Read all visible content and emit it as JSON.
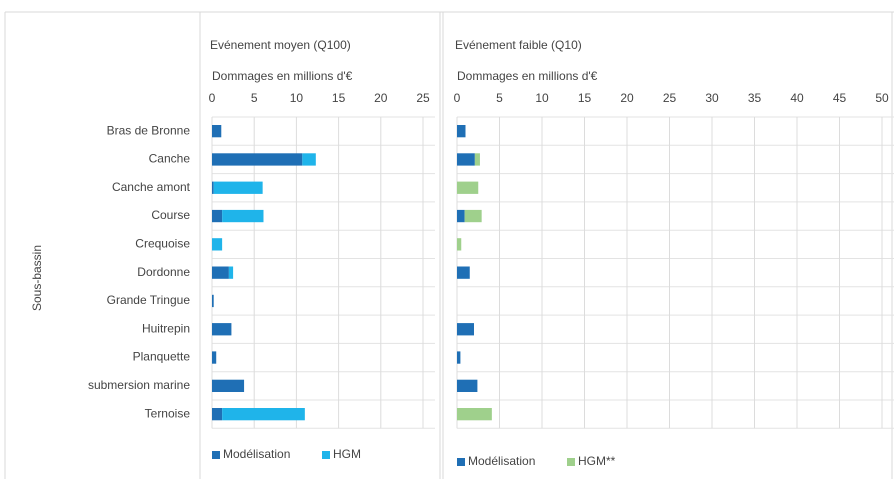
{
  "chart_data": [
    {
      "type": "bar",
      "orientation": "horizontal",
      "stacked": true,
      "title": "Evénement moyen (Q100)",
      "x_label": "Dommages en millions d'€",
      "y_label": "Sous-bassin",
      "categories": [
        "Bras de Bronne",
        "Canche",
        "Canche amont",
        "Course",
        "Crequoise",
        "Dordonne",
        "Grande Tringue",
        "Huitrepin",
        "Planquette",
        "submersion marine",
        "Ternoise"
      ],
      "series": [
        {
          "name": "Modélisation",
          "color": "#1f6fb5",
          "values": [
            1.1,
            10.7,
            0.2,
            1.2,
            0,
            2.0,
            0.2,
            2.3,
            0.5,
            3.8,
            1.2
          ]
        },
        {
          "name": "HGM",
          "color": "#1fb4ea",
          "values": [
            0,
            1.6,
            5.8,
            4.9,
            1.2,
            0.5,
            0,
            0,
            0,
            0,
            9.8
          ]
        }
      ],
      "xlim": [
        0,
        25
      ],
      "xticks": [
        0,
        5,
        10,
        15,
        20,
        25
      ],
      "grid": true
    },
    {
      "type": "bar",
      "orientation": "horizontal",
      "stacked": true,
      "title": "Evénement faible (Q10)",
      "x_label": "Dommages en millions d'€",
      "series": [
        {
          "name": "Modélisation",
          "color": "#1f6fb5",
          "values": [
            1.0,
            2.1,
            0,
            0.9,
            0,
            1.5,
            0,
            2.0,
            0.4,
            2.4,
            0
          ]
        },
        {
          "name": "HGM**",
          "color": "#9fd08c",
          "values": [
            0,
            0.6,
            2.5,
            2.0,
            0.5,
            0,
            0,
            0,
            0,
            0,
            4.1
          ]
        }
      ],
      "xlim": [
        0,
        50
      ],
      "xticks": [
        0,
        5,
        10,
        15,
        20,
        25,
        30,
        35,
        40,
        45,
        50
      ],
      "grid": true
    }
  ]
}
